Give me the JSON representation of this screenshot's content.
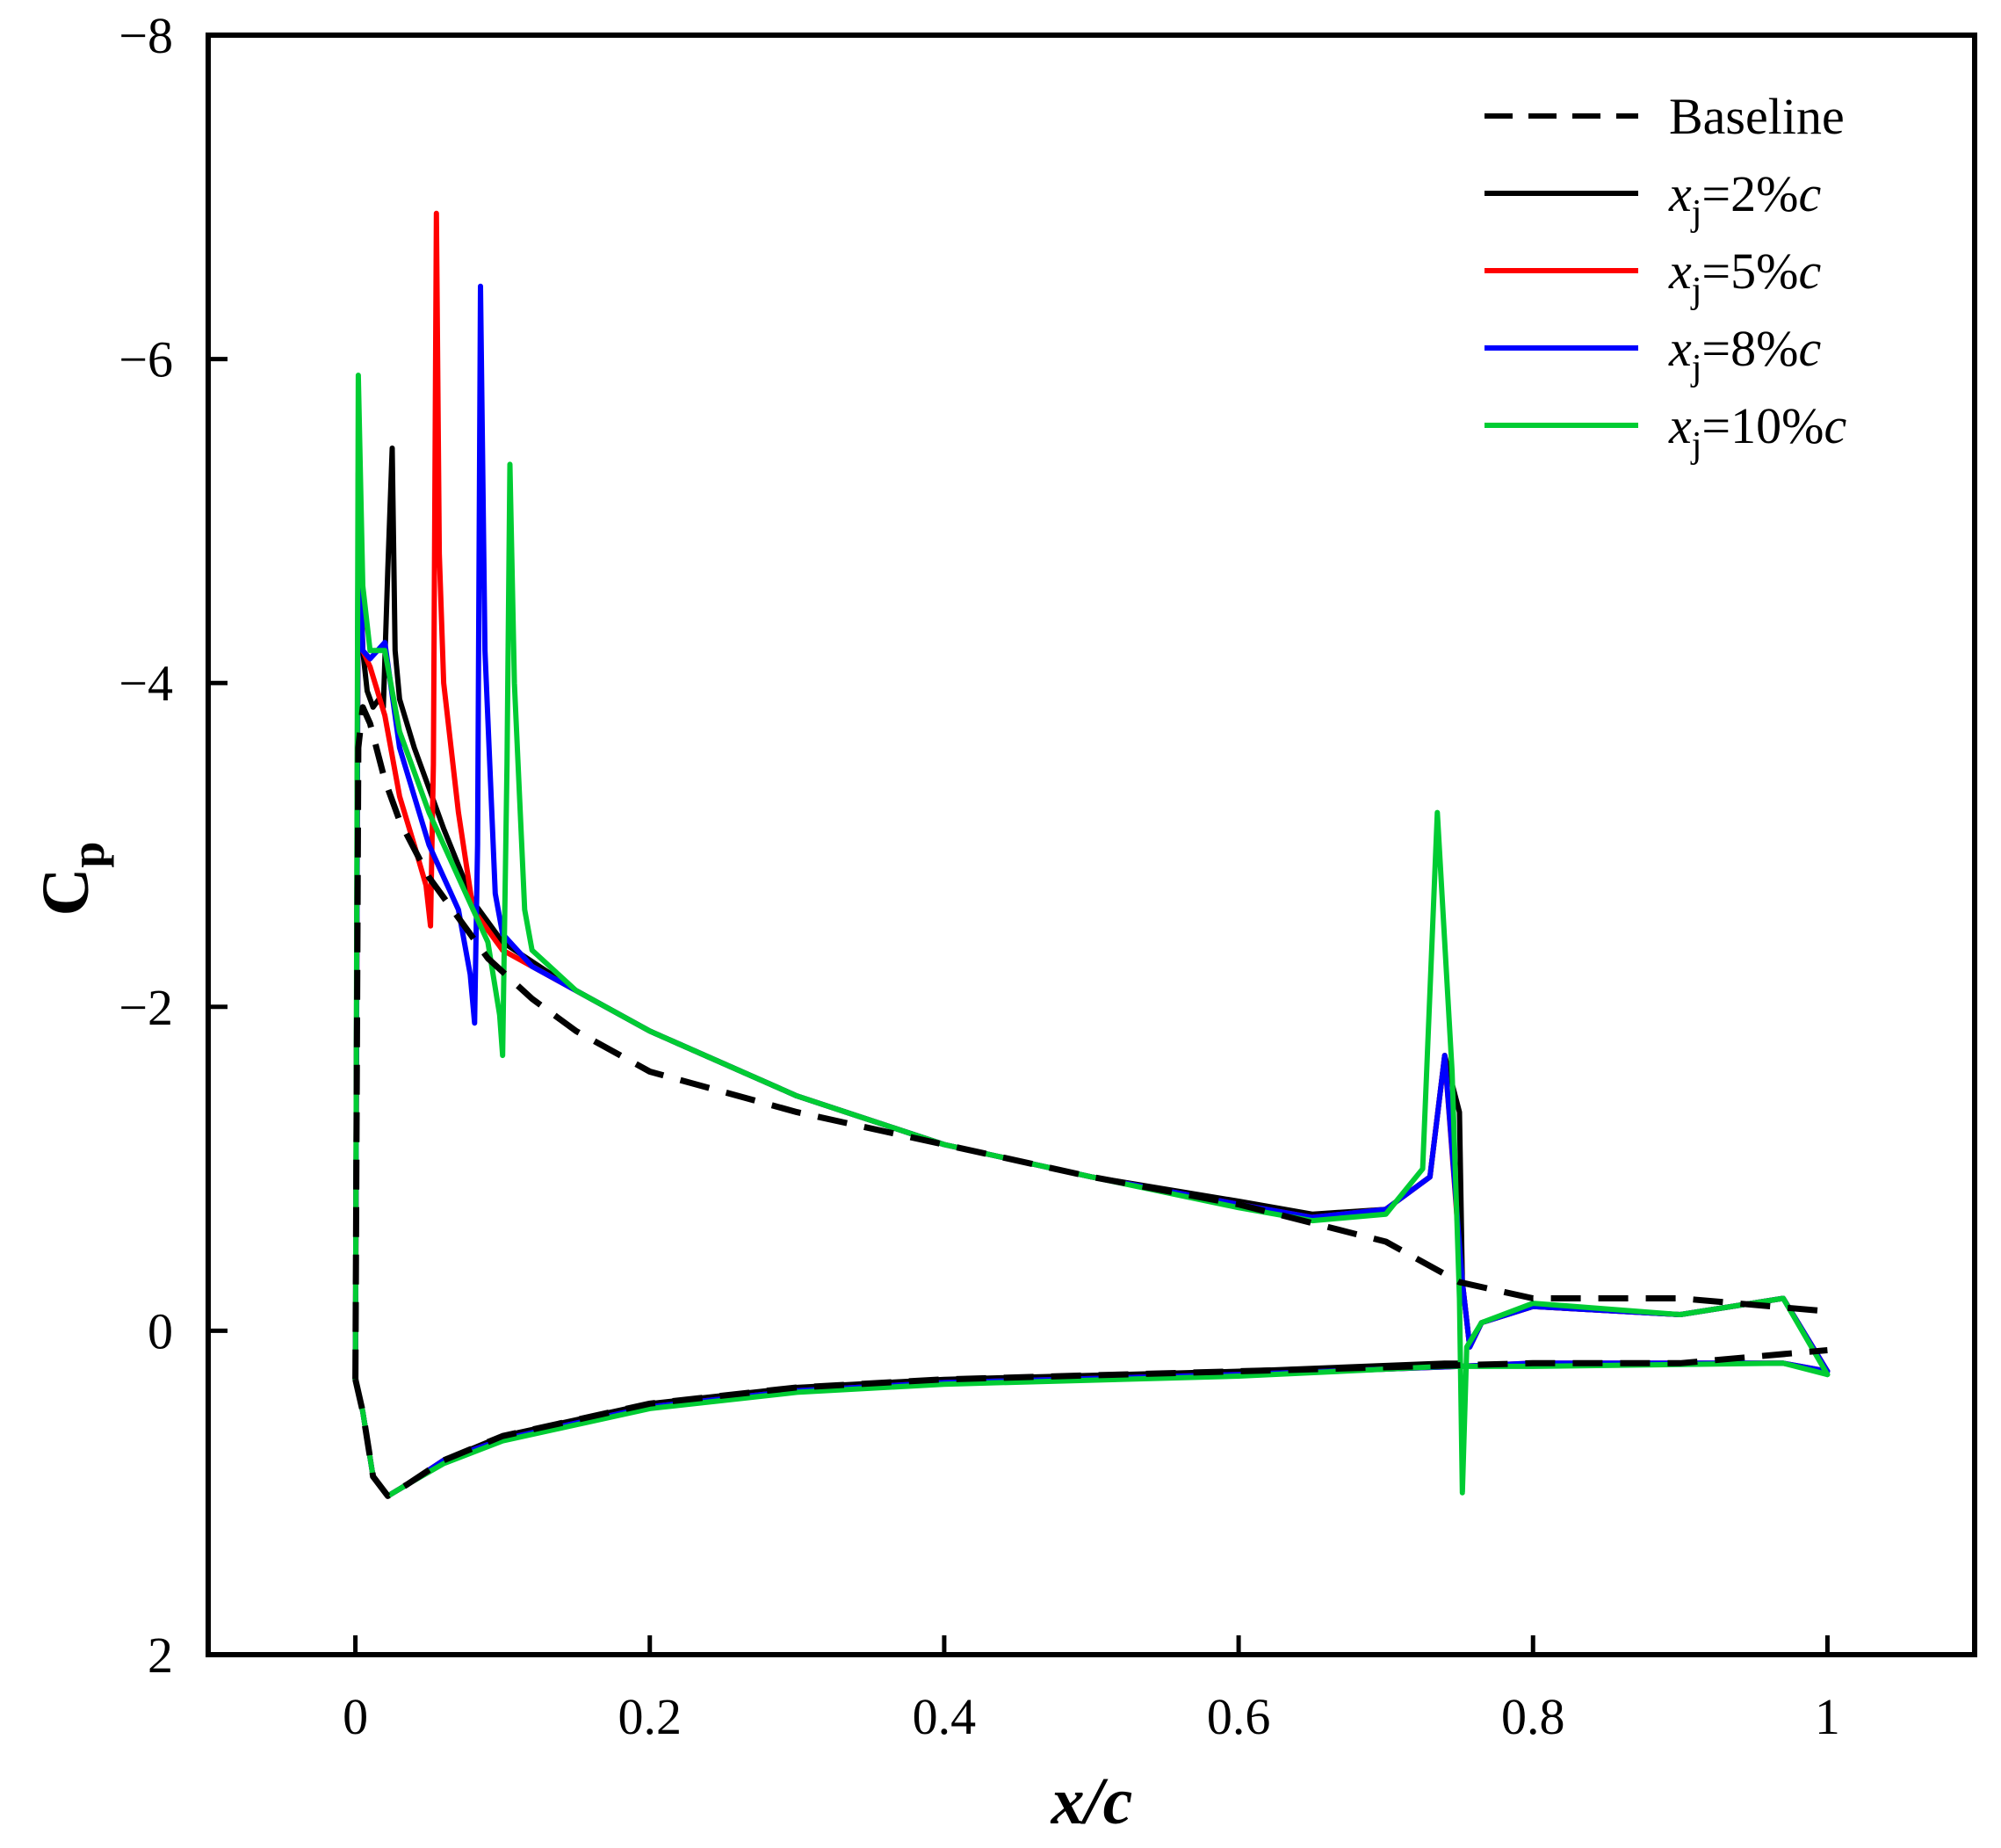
{
  "chart_data": {
    "type": "line",
    "title": "",
    "xlabel_main": "x/c",
    "ylabel_main": "C",
    "ylabel_sub": "p",
    "xlim": [
      -0.1,
      1.1
    ],
    "ylim": [
      -8,
      2
    ],
    "y_inverted": true,
    "grid": false,
    "legend_position": "top-right",
    "xticks": [
      {
        "v": 0,
        "label": "0"
      },
      {
        "v": 0.2,
        "label": "0.2"
      },
      {
        "v": 0.4,
        "label": "0.4"
      },
      {
        "v": 0.6,
        "label": "0.6"
      },
      {
        "v": 0.8,
        "label": "0.8"
      },
      {
        "v": 1,
        "label": "1"
      }
    ],
    "yticks": [
      {
        "v": -8,
        "label": "−8"
      },
      {
        "v": -6,
        "label": "−6"
      },
      {
        "v": -4,
        "label": "−4"
      },
      {
        "v": -2,
        "label": "−2"
      },
      {
        "v": 0,
        "label": "0"
      },
      {
        "v": 2,
        "label": "2"
      }
    ],
    "series": [
      {
        "name": "Baseline",
        "label_var": "",
        "label_sub": "",
        "label_val": "Baseline",
        "color": "#000000",
        "dashed": true,
        "upper": [
          [
            0,
            0.3
          ],
          [
            0.002,
            -3.6
          ],
          [
            0.005,
            -3.85
          ],
          [
            0.01,
            -3.75
          ],
          [
            0.02,
            -3.4
          ],
          [
            0.03,
            -3.15
          ],
          [
            0.05,
            -2.8
          ],
          [
            0.07,
            -2.55
          ],
          [
            0.09,
            -2.3
          ],
          [
            0.12,
            -2.05
          ],
          [
            0.15,
            -1.85
          ],
          [
            0.2,
            -1.6
          ],
          [
            0.3,
            -1.35
          ],
          [
            0.4,
            -1.15
          ],
          [
            0.5,
            -0.95
          ],
          [
            0.6,
            -0.78
          ],
          [
            0.7,
            -0.55
          ],
          [
            0.75,
            -0.3
          ],
          [
            0.8,
            -0.2
          ],
          [
            0.9,
            -0.2
          ],
          [
            1.0,
            -0.12
          ]
        ],
        "lower": [
          [
            0,
            0.3
          ],
          [
            0.005,
            0.5
          ],
          [
            0.012,
            0.9
          ],
          [
            0.022,
            1.02
          ],
          [
            0.035,
            0.95
          ],
          [
            0.06,
            0.8
          ],
          [
            0.1,
            0.65
          ],
          [
            0.2,
            0.45
          ],
          [
            0.3,
            0.35
          ],
          [
            0.4,
            0.3
          ],
          [
            0.6,
            0.25
          ],
          [
            0.8,
            0.2
          ],
          [
            0.9,
            0.2
          ],
          [
            1.0,
            0.12
          ]
        ]
      },
      {
        "name": "x_j=2%c",
        "label_var": "x",
        "label_sub": "j",
        "label_val": "=2%c",
        "color": "#000000",
        "dashed": false,
        "upper": [
          [
            0,
            0.3
          ],
          [
            0.002,
            -5.3
          ],
          [
            0.005,
            -4.2
          ],
          [
            0.008,
            -3.95
          ],
          [
            0.012,
            -3.85
          ],
          [
            0.016,
            -3.9
          ],
          [
            0.019,
            -3.85
          ],
          [
            0.022,
            -4.7
          ],
          [
            0.025,
            -5.45
          ],
          [
            0.027,
            -4.2
          ],
          [
            0.03,
            -3.9
          ],
          [
            0.04,
            -3.6
          ],
          [
            0.05,
            -3.35
          ],
          [
            0.06,
            -3.1
          ],
          [
            0.08,
            -2.65
          ],
          [
            0.1,
            -2.4
          ],
          [
            0.15,
            -2.1
          ],
          [
            0.2,
            -1.85
          ],
          [
            0.3,
            -1.45
          ],
          [
            0.4,
            -1.15
          ],
          [
            0.5,
            -0.95
          ],
          [
            0.6,
            -0.8
          ],
          [
            0.65,
            -0.72
          ],
          [
            0.7,
            -0.75
          ],
          [
            0.73,
            -0.95
          ],
          [
            0.74,
            -1.7
          ],
          [
            0.75,
            -1.35
          ],
          [
            0.752,
            -0.3
          ],
          [
            0.757,
            0.1
          ],
          [
            0.765,
            -0.05
          ],
          [
            0.8,
            -0.15
          ],
          [
            0.9,
            -0.1
          ],
          [
            0.97,
            -0.2
          ],
          [
            1.0,
            0.25
          ]
        ],
        "lower": [
          [
            0,
            0.3
          ],
          [
            0.005,
            0.5
          ],
          [
            0.012,
            0.9
          ],
          [
            0.022,
            1.02
          ],
          [
            0.035,
            0.95
          ],
          [
            0.06,
            0.8
          ],
          [
            0.1,
            0.65
          ],
          [
            0.2,
            0.45
          ],
          [
            0.3,
            0.35
          ],
          [
            0.4,
            0.3
          ],
          [
            0.6,
            0.25
          ],
          [
            0.74,
            0.2
          ],
          [
            0.75,
            0.2
          ]
        ]
      },
      {
        "name": "x_j=5%c",
        "label_var": "x",
        "label_sub": "j",
        "label_val": "=5%c",
        "color": "#ff0000",
        "dashed": false,
        "upper": [
          [
            0,
            0.3
          ],
          [
            0.002,
            -5.0
          ],
          [
            0.005,
            -4.2
          ],
          [
            0.01,
            -4.1
          ],
          [
            0.02,
            -3.8
          ],
          [
            0.03,
            -3.3
          ],
          [
            0.04,
            -3.0
          ],
          [
            0.048,
            -2.75
          ],
          [
            0.051,
            -2.5
          ],
          [
            0.053,
            -3.5
          ],
          [
            0.055,
            -6.9
          ],
          [
            0.057,
            -4.8
          ],
          [
            0.06,
            -4.0
          ],
          [
            0.07,
            -3.2
          ],
          [
            0.08,
            -2.6
          ],
          [
            0.1,
            -2.35
          ],
          [
            0.15,
            -2.1
          ],
          [
            0.2,
            -1.85
          ],
          [
            0.3,
            -1.45
          ],
          [
            0.4,
            -1.15
          ],
          [
            0.5,
            -0.95
          ],
          [
            0.6,
            -0.78
          ],
          [
            0.65,
            -0.7
          ],
          [
            0.7,
            -0.75
          ],
          [
            0.73,
            -0.95
          ],
          [
            0.74,
            -1.7
          ],
          [
            0.75,
            -0.5
          ],
          [
            0.752,
            -0.3
          ],
          [
            0.757,
            0.1
          ],
          [
            0.765,
            -0.05
          ],
          [
            0.8,
            -0.15
          ],
          [
            0.9,
            -0.1
          ],
          [
            0.97,
            -0.2
          ],
          [
            1.0,
            0.25
          ]
        ],
        "lower": [
          [
            0,
            0.3
          ],
          [
            0.005,
            0.5
          ],
          [
            0.012,
            0.9
          ],
          [
            0.022,
            1.02
          ],
          [
            0.035,
            0.95
          ],
          [
            0.06,
            0.8
          ],
          [
            0.1,
            0.67
          ],
          [
            0.2,
            0.47
          ],
          [
            0.3,
            0.37
          ],
          [
            0.4,
            0.32
          ],
          [
            0.6,
            0.27
          ],
          [
            0.75,
            0.22
          ],
          [
            0.8,
            0.2
          ],
          [
            0.9,
            0.2
          ],
          [
            0.97,
            0.2
          ],
          [
            1.0,
            0.25
          ]
        ]
      },
      {
        "name": "x_j=8%c",
        "label_var": "x",
        "label_sub": "j",
        "label_val": "=8%c",
        "color": "#0000ff",
        "dashed": false,
        "upper": [
          [
            0,
            0.3
          ],
          [
            0.002,
            -5.0
          ],
          [
            0.005,
            -4.2
          ],
          [
            0.01,
            -4.15
          ],
          [
            0.02,
            -4.25
          ],
          [
            0.03,
            -3.6
          ],
          [
            0.05,
            -3.0
          ],
          [
            0.07,
            -2.6
          ],
          [
            0.078,
            -2.2
          ],
          [
            0.081,
            -1.9
          ],
          [
            0.083,
            -3.0
          ],
          [
            0.085,
            -6.45
          ],
          [
            0.088,
            -4.2
          ],
          [
            0.095,
            -2.7
          ],
          [
            0.1,
            -2.45
          ],
          [
            0.12,
            -2.25
          ],
          [
            0.15,
            -2.1
          ],
          [
            0.2,
            -1.85
          ],
          [
            0.3,
            -1.45
          ],
          [
            0.4,
            -1.15
          ],
          [
            0.5,
            -0.95
          ],
          [
            0.6,
            -0.78
          ],
          [
            0.65,
            -0.7
          ],
          [
            0.7,
            -0.75
          ],
          [
            0.73,
            -0.95
          ],
          [
            0.74,
            -1.7
          ],
          [
            0.752,
            -0.3
          ],
          [
            0.757,
            0.1
          ],
          [
            0.765,
            -0.05
          ],
          [
            0.8,
            -0.15
          ],
          [
            0.9,
            -0.1
          ],
          [
            0.97,
            -0.2
          ],
          [
            1.0,
            0.25
          ]
        ],
        "lower": [
          [
            0,
            0.3
          ],
          [
            0.005,
            0.5
          ],
          [
            0.012,
            0.9
          ],
          [
            0.022,
            1.02
          ],
          [
            0.035,
            0.95
          ],
          [
            0.06,
            0.8
          ],
          [
            0.1,
            0.67
          ],
          [
            0.2,
            0.47
          ],
          [
            0.3,
            0.37
          ],
          [
            0.4,
            0.32
          ],
          [
            0.6,
            0.27
          ],
          [
            0.75,
            0.22
          ],
          [
            0.8,
            0.2
          ],
          [
            0.97,
            0.2
          ],
          [
            1.0,
            0.25
          ]
        ]
      },
      {
        "name": "x_j=10%c",
        "label_var": "x",
        "label_sub": "j",
        "label_val": "=10%c",
        "color": "#00cc33",
        "dashed": false,
        "upper": [
          [
            0,
            0.3
          ],
          [
            0.002,
            -5.9
          ],
          [
            0.005,
            -4.6
          ],
          [
            0.01,
            -4.2
          ],
          [
            0.02,
            -4.2
          ],
          [
            0.03,
            -3.7
          ],
          [
            0.05,
            -3.2
          ],
          [
            0.07,
            -2.8
          ],
          [
            0.09,
            -2.4
          ],
          [
            0.098,
            -1.95
          ],
          [
            0.1,
            -1.7
          ],
          [
            0.103,
            -3.5
          ],
          [
            0.105,
            -5.35
          ],
          [
            0.108,
            -4.0
          ],
          [
            0.115,
            -2.6
          ],
          [
            0.12,
            -2.35
          ],
          [
            0.15,
            -2.1
          ],
          [
            0.2,
            -1.85
          ],
          [
            0.3,
            -1.45
          ],
          [
            0.4,
            -1.15
          ],
          [
            0.5,
            -0.95
          ],
          [
            0.6,
            -0.76
          ],
          [
            0.65,
            -0.68
          ],
          [
            0.7,
            -0.72
          ],
          [
            0.725,
            -1.0
          ],
          [
            0.735,
            -3.2
          ],
          [
            0.745,
            -1.6
          ],
          [
            0.75,
            -0.2
          ],
          [
            0.752,
            1.0
          ],
          [
            0.755,
            0.1
          ],
          [
            0.765,
            -0.05
          ],
          [
            0.8,
            -0.17
          ],
          [
            0.9,
            -0.1
          ],
          [
            0.97,
            -0.2
          ],
          [
            1.0,
            0.27
          ]
        ],
        "lower": [
          [
            0,
            0.3
          ],
          [
            0.005,
            0.5
          ],
          [
            0.012,
            0.9
          ],
          [
            0.022,
            1.02
          ],
          [
            0.035,
            0.95
          ],
          [
            0.06,
            0.82
          ],
          [
            0.1,
            0.68
          ],
          [
            0.2,
            0.48
          ],
          [
            0.3,
            0.38
          ],
          [
            0.4,
            0.33
          ],
          [
            0.6,
            0.28
          ],
          [
            0.74,
            0.22
          ],
          [
            0.75,
            0.22
          ],
          [
            0.8,
            0.22
          ],
          [
            0.97,
            0.2
          ],
          [
            1.0,
            0.27
          ]
        ]
      }
    ]
  }
}
